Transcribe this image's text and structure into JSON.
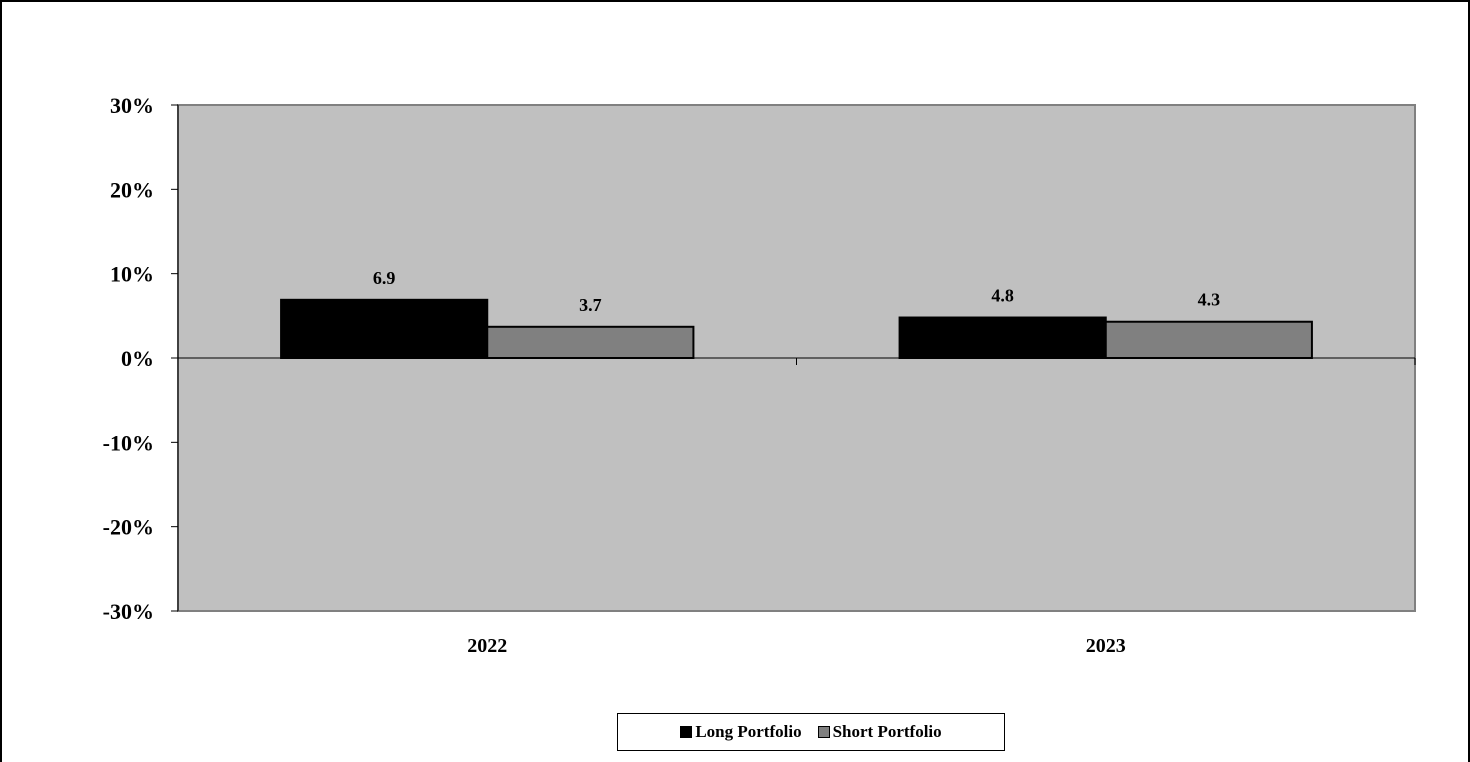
{
  "chart_data": {
    "type": "bar",
    "categories": [
      "2022",
      "2023"
    ],
    "series": [
      {
        "name": "Long Portfolio",
        "values": [
          6.9,
          4.8
        ],
        "labels": [
          "6.9",
          "4.8"
        ],
        "color": "#000000"
      },
      {
        "name": "Short Portfolio",
        "values": [
          3.7,
          4.3
        ],
        "labels": [
          "3.7",
          "4.3"
        ],
        "color": "#808080"
      }
    ],
    "y_ticks": [
      "30%",
      "20%",
      "10%",
      "0%",
      "-10%",
      "-20%",
      "-30%"
    ],
    "ylim": [
      -30,
      30
    ],
    "y_unit": "%",
    "title": "",
    "xlabel": "",
    "ylabel": "",
    "plot_background": "#c0c0c0",
    "grid": false,
    "legend_position": "bottom-center"
  }
}
